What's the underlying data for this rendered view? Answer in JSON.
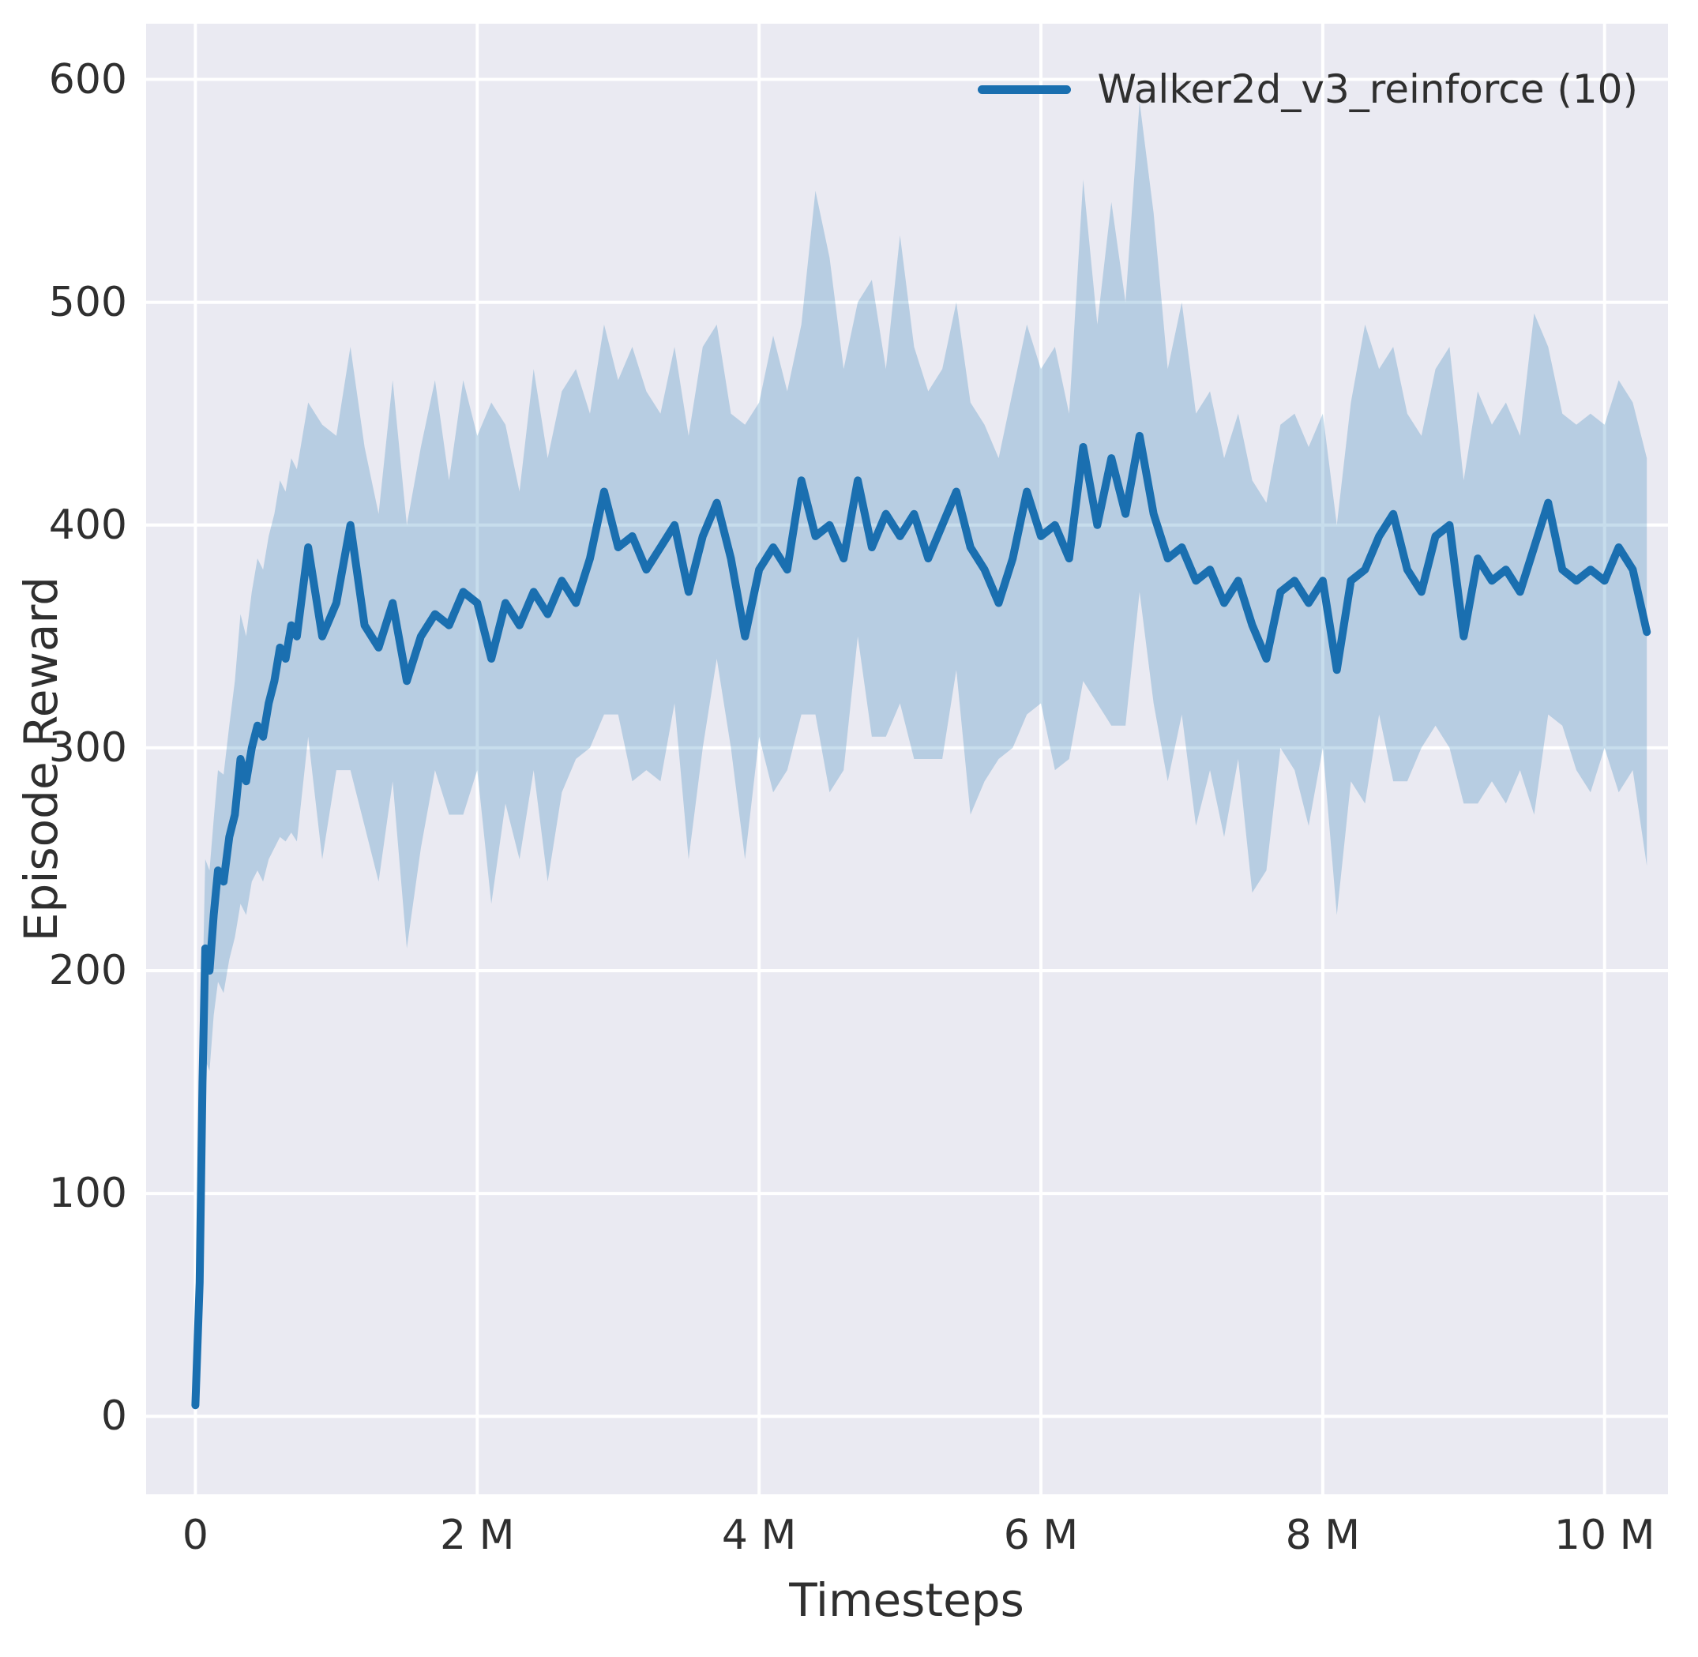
{
  "figure": {
    "background": "#ffffff",
    "plot_background": "#eaeaf2",
    "grid_color": "#ffffff",
    "text_color": "#2f2f2f"
  },
  "chart_data": {
    "type": "line",
    "title": "",
    "xlabel": "Timesteps",
    "ylabel": "Episode Reward",
    "grid": true,
    "legend_position": "upper right",
    "legend": [
      {
        "label": "Walker2d_v3_reinforce (10)",
        "color": "#1a6fb0"
      }
    ],
    "line_color": "#1a6fb0",
    "band_color": "#1f77b4",
    "band_opacity": 0.25,
    "xlim": [
      -0.35,
      10.45
    ],
    "ylim": [
      -35,
      625
    ],
    "x_unit": "millions",
    "x_ticks": [
      {
        "value": 0,
        "label": "0"
      },
      {
        "value": 2,
        "label": "2 M"
      },
      {
        "value": 4,
        "label": "4 M"
      },
      {
        "value": 6,
        "label": "6 M"
      },
      {
        "value": 8,
        "label": "8 M"
      },
      {
        "value": 10,
        "label": "10 M"
      }
    ],
    "y_ticks": [
      {
        "value": 0,
        "label": "0"
      },
      {
        "value": 100,
        "label": "100"
      },
      {
        "value": 200,
        "label": "200"
      },
      {
        "value": 300,
        "label": "300"
      },
      {
        "value": 400,
        "label": "400"
      },
      {
        "value": 500,
        "label": "500"
      },
      {
        "value": 600,
        "label": "600"
      }
    ],
    "series": [
      {
        "name": "Walker2d_v3_reinforce (10)",
        "x": [
          0,
          0.03,
          0.05,
          0.07,
          0.1,
          0.13,
          0.16,
          0.2,
          0.24,
          0.28,
          0.32,
          0.36,
          0.4,
          0.44,
          0.48,
          0.52,
          0.56,
          0.6,
          0.64,
          0.68,
          0.72,
          0.8,
          0.9,
          1,
          1.1,
          1.2,
          1.3,
          1.4,
          1.5,
          1.6,
          1.7,
          1.8,
          1.9,
          2,
          2.1,
          2.2,
          2.3,
          2.4,
          2.5,
          2.6,
          2.7,
          2.8,
          2.9,
          3,
          3.1,
          3.2,
          3.3,
          3.4,
          3.5,
          3.6,
          3.7,
          3.8,
          3.9,
          4,
          4.1,
          4.2,
          4.3,
          4.4,
          4.5,
          4.6,
          4.7,
          4.8,
          4.9,
          5,
          5.1,
          5.2,
          5.3,
          5.4,
          5.5,
          5.6,
          5.7,
          5.8,
          5.9,
          6,
          6.1,
          6.2,
          6.3,
          6.4,
          6.5,
          6.6,
          6.7,
          6.8,
          6.9,
          7,
          7.1,
          7.2,
          7.3,
          7.4,
          7.5,
          7.6,
          7.7,
          7.8,
          7.9,
          8,
          8.1,
          8.2,
          8.3,
          8.4,
          8.5,
          8.6,
          8.7,
          8.8,
          8.9,
          9,
          9.1,
          9.2,
          9.3,
          9.4,
          9.5,
          9.6,
          9.7,
          9.8,
          9.9,
          10,
          10.1,
          10.2,
          10.3
        ],
        "mean": [
          5,
          60,
          150,
          210,
          200,
          225,
          245,
          240,
          260,
          270,
          295,
          285,
          300,
          310,
          305,
          320,
          330,
          345,
          340,
          355,
          350,
          390,
          350,
          365,
          400,
          355,
          345,
          365,
          330,
          350,
          360,
          355,
          370,
          365,
          340,
          365,
          355,
          370,
          360,
          375,
          365,
          385,
          415,
          390,
          395,
          380,
          390,
          400,
          370,
          395,
          410,
          385,
          350,
          380,
          390,
          380,
          420,
          395,
          400,
          385,
          420,
          390,
          405,
          395,
          405,
          385,
          400,
          415,
          390,
          380,
          365,
          385,
          415,
          395,
          400,
          385,
          435,
          400,
          430,
          405,
          440,
          405,
          385,
          390,
          375,
          380,
          365,
          375,
          355,
          340,
          370,
          375,
          365,
          375,
          335,
          375,
          380,
          395,
          405,
          380,
          370,
          395,
          400,
          350,
          385,
          375,
          380,
          370,
          390,
          410,
          380,
          375,
          380,
          375,
          390,
          380,
          352
        ],
        "band_lower": [
          3,
          30,
          110,
          160,
          155,
          180,
          195,
          190,
          205,
          215,
          230,
          225,
          240,
          245,
          240,
          250,
          255,
          260,
          258,
          262,
          258,
          305,
          250,
          290,
          290,
          265,
          240,
          285,
          210,
          255,
          290,
          270,
          270,
          290,
          230,
          275,
          250,
          290,
          240,
          280,
          295,
          300,
          315,
          315,
          285,
          290,
          285,
          320,
          250,
          300,
          340,
          300,
          250,
          305,
          280,
          290,
          315,
          315,
          280,
          290,
          350,
          305,
          305,
          320,
          295,
          295,
          295,
          335,
          270,
          285,
          295,
          300,
          315,
          320,
          290,
          295,
          330,
          320,
          310,
          310,
          370,
          320,
          285,
          315,
          265,
          290,
          260,
          295,
          235,
          245,
          300,
          290,
          265,
          300,
          225,
          285,
          275,
          315,
          285,
          285,
          300,
          310,
          300,
          275,
          275,
          285,
          275,
          290,
          270,
          315,
          310,
          290,
          280,
          300,
          280,
          290,
          247
        ],
        "band_upper": [
          8,
          90,
          190,
          250,
          245,
          268,
          290,
          288,
          310,
          330,
          360,
          350,
          370,
          385,
          380,
          395,
          405,
          420,
          415,
          430,
          425,
          455,
          445,
          440,
          480,
          435,
          405,
          465,
          400,
          435,
          465,
          420,
          465,
          440,
          455,
          445,
          415,
          470,
          430,
          460,
          470,
          450,
          490,
          465,
          480,
          460,
          450,
          480,
          440,
          480,
          490,
          450,
          445,
          455,
          485,
          460,
          490,
          550,
          520,
          470,
          500,
          510,
          470,
          530,
          480,
          460,
          470,
          500,
          455,
          445,
          430,
          460,
          490,
          470,
          480,
          450,
          555,
          490,
          545,
          500,
          590,
          540,
          470,
          500,
          450,
          460,
          430,
          450,
          420,
          410,
          445,
          450,
          435,
          450,
          400,
          455,
          490,
          470,
          480,
          450,
          440,
          470,
          480,
          420,
          460,
          445,
          455,
          440,
          495,
          480,
          450,
          445,
          450,
          445,
          465,
          455,
          430
        ]
      }
    ]
  }
}
